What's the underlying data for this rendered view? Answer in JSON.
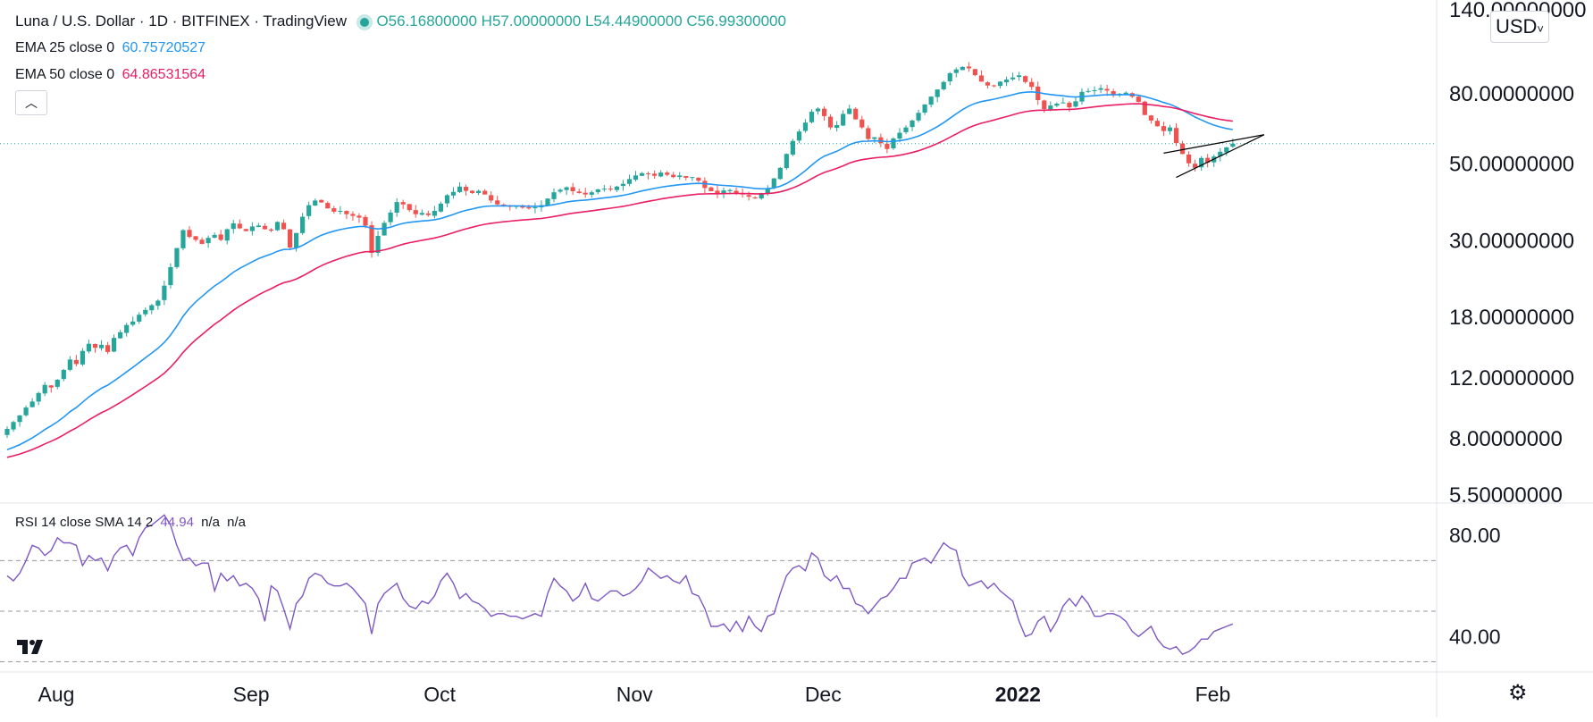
{
  "header": {
    "symbol": "Luna / U.S. Dollar · 1D · BITFINEX · TradingView",
    "ohlc": "O56.16800000 H57.00000000 L54.44900000 C56.99300000",
    "ema25": {
      "label": "EMA 25 close 0",
      "value": "60.75720527",
      "color": "#2196f3"
    },
    "ema50": {
      "label": "EMA 50 close 0",
      "value": "64.86531564",
      "color": "#e91e63"
    },
    "collapse_icon": "chevron-up-icon",
    "currency": "USD"
  },
  "rsi_legend": {
    "label": "RSI 14 close SMA 14 2",
    "value": "44.94",
    "na1": "n/a",
    "na2": "n/a",
    "color": "#7e57c2"
  },
  "colors": {
    "up": "#26a69a",
    "down": "#ef5350",
    "ema25": "#2196f3",
    "ema50": "#e91e63",
    "rsi": "#7e57c2",
    "last_price_line": "#26a69a"
  },
  "chart_data": [
    {
      "type": "candlestick",
      "price_scale": "log",
      "ylim": [
        5.5,
        140
      ],
      "yticks": [
        "140.00000000",
        "80.00000000",
        "50.00000000",
        "30.00000000",
        "18.00000000",
        "12.00000000",
        "8.00000000",
        "5.50000000"
      ],
      "ytick_values": [
        140,
        80,
        50,
        30,
        18,
        12,
        8,
        5.5
      ],
      "xticks": [
        "Aug",
        "Sep",
        "Oct",
        "Nov",
        "Dec",
        "2022",
        "Feb"
      ],
      "xtick_days": [
        0,
        31,
        61,
        92,
        122,
        153,
        184
      ],
      "close": [
        8.5,
        8.9,
        9.3,
        9.8,
        10.2,
        10.8,
        11.4,
        11.2,
        11.8,
        12.6,
        13.5,
        13.1,
        14.3,
        15.0,
        14.6,
        14.9,
        14.2,
        15.6,
        16.2,
        17.0,
        17.4,
        18.2,
        18.8,
        19.4,
        20.0,
        22.1,
        25.0,
        28.4,
        32.0,
        30.6,
        30.0,
        29.2,
        30.4,
        31.0,
        30.0,
        32.2,
        33.5,
        32.4,
        31.8,
        32.8,
        33.0,
        32.2,
        31.9,
        33.8,
        32.2,
        28.5,
        31.4,
        35.0,
        37.8,
        39.0,
        38.5,
        37.0,
        36.2,
        36.4,
        35.6,
        35.2,
        34.8,
        33.0,
        27.5,
        30.8,
        33.6,
        36.0,
        38.6,
        38.0,
        36.6,
        35.6,
        35.9,
        35.4,
        36.4,
        38.2,
        40.4,
        41.3,
        42.8,
        41.6,
        41.0,
        41.6,
        40.6,
        39.0,
        38.0,
        37.9,
        37.4,
        37.6,
        37.2,
        37.0,
        37.3,
        37.8,
        39.5,
        41.2,
        41.9,
        42.6,
        41.5,
        41.0,
        40.6,
        41.2,
        42.0,
        42.2,
        42.0,
        42.8,
        43.6,
        45.0,
        46.1,
        46.8,
        46.5,
        46.0,
        47.0,
        46.3,
        45.6,
        46.1,
        45.4,
        45.6,
        44.5,
        42.4,
        41.5,
        40.8,
        41.7,
        41.8,
        41.0,
        40.6,
        40.0,
        39.6,
        41.0,
        42.4,
        45.2,
        48.5,
        53.2,
        58.0,
        61.8,
        65.6,
        70.5,
        72.0,
        68.5,
        63.5,
        64.5,
        69.5,
        72.0,
        67.0,
        63.5,
        58.8,
        59.5,
        57.2,
        55.0,
        59.0,
        61.3,
        63.5,
        66.5,
        70.0,
        74.0,
        78.0,
        81.8,
        86.0,
        91.2,
        93.5,
        95.1,
        94.2,
        90.0,
        86.2,
        84.0,
        83.8,
        86.2,
        87.4,
        88.6,
        89.9,
        86.0,
        83.2,
        76.2,
        71.8,
        73.5,
        74.4,
        75.0,
        72.6,
        75.6,
        80.5,
        81.0,
        81.4,
        82.5,
        81.2,
        78.8,
        79.5,
        80.1,
        78.0,
        75.3,
        69.0,
        66.5,
        64.0,
        62.0,
        63.5,
        57.2,
        53.2,
        50.0,
        48.5,
        51.8,
        50.2,
        52.3,
        54.0,
        55.6,
        56.993
      ]
    },
    {
      "type": "line",
      "name": "RSI 14 close SMA 14 2",
      "ylim": [
        26,
        92
      ],
      "yticks": [
        "80.00",
        "40.00"
      ],
      "ytick_values": [
        80,
        40
      ],
      "bands": [
        70,
        50,
        30
      ],
      "values": [
        64,
        62,
        65,
        70,
        76,
        75,
        72,
        74,
        79,
        77,
        77,
        76,
        68,
        72,
        70,
        71,
        66,
        72,
        75,
        76,
        72,
        79,
        83,
        84,
        86,
        88,
        84,
        76,
        70,
        71,
        68,
        69,
        69,
        58,
        65,
        62,
        64,
        60,
        61,
        59,
        55,
        46,
        60,
        58,
        51,
        43,
        53,
        56,
        63,
        65,
        64,
        61,
        60,
        60,
        61,
        59,
        56,
        53,
        41,
        53,
        57,
        59,
        61,
        55,
        52,
        51,
        54,
        53,
        56,
        62,
        65,
        61,
        55,
        57,
        54,
        53,
        51,
        48,
        49,
        49,
        48,
        48,
        47,
        48,
        49,
        48,
        57,
        63,
        60,
        58,
        54,
        56,
        61,
        55,
        54,
        56,
        58,
        58,
        56,
        57,
        59,
        62,
        67,
        65,
        63,
        64,
        62,
        61,
        64,
        57,
        56,
        51,
        44,
        44,
        45,
        42,
        46,
        42,
        48,
        44,
        42,
        48,
        49,
        57,
        64,
        67,
        68,
        66,
        73,
        71,
        64,
        62,
        64,
        59,
        59,
        53,
        52,
        49,
        52,
        55,
        56,
        59,
        63,
        63,
        69,
        70,
        71,
        69,
        73,
        77,
        75,
        74,
        64,
        60,
        61,
        62,
        59,
        61,
        58,
        56,
        54,
        46,
        40,
        41,
        46,
        48,
        42,
        46,
        52,
        55,
        52,
        56,
        53,
        48,
        48,
        49,
        49,
        48,
        46,
        42,
        40,
        42,
        44,
        39,
        36,
        35,
        36,
        33,
        34,
        36,
        39,
        39,
        42,
        43,
        44,
        44.94
      ]
    }
  ]
}
